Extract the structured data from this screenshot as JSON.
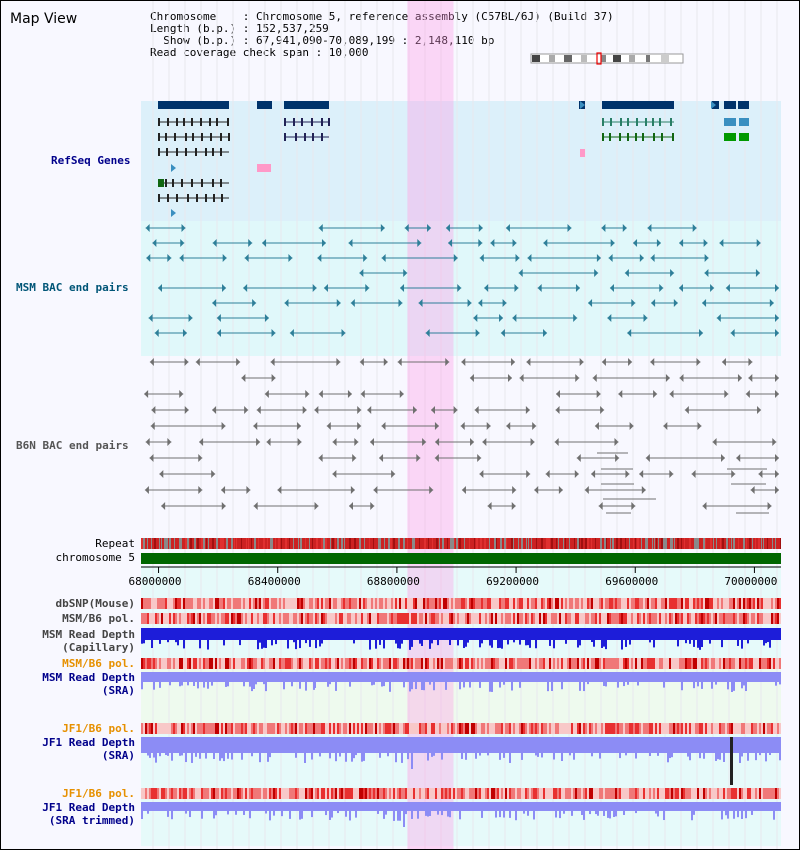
{
  "page": {
    "title": "Map View"
  },
  "header": {
    "chromosome_label": "Chromosome    : Chromosome 5, reference assembly (C57BL/6J) (Build 37)",
    "length_label": "Length (b.p.) : 152,537,259",
    "show_label": "  Show (b.p.) : 67,941,090-70,089,199 : 2,148,110 bp",
    "coverage_label": "Read coverage check span : 10,000"
  },
  "tracks": {
    "refseq": "RefSeq Genes",
    "msm_bac": "MSM BAC end pairs",
    "b6n_bac": "B6N BAC end pairs",
    "repeat": "Repeat",
    "chromosome": "chromosome 5",
    "dbsnp": "dbSNP(Mouse)",
    "msm_b6_pol": "MSM/B6 pol.",
    "msm_depth_cap_1": "MSM Read Depth",
    "msm_depth_cap_2": "(Capillary)",
    "msm_b6_pol_sra": "MSM/B6 pol.",
    "msm_depth_sra_1": "MSM Read Depth",
    "msm_depth_sra_2": "(SRA)",
    "jf1_b6_pol": "JF1/B6 pol.",
    "jf1_depth_1": "JF1 Read Depth",
    "jf1_depth_2": "(SRA)",
    "jf1_b6_pol_2": "JF1/B6 pol.",
    "jf1_trim_1": "JF1 Read Depth",
    "jf1_trim_2": "(SRA trimmed)"
  },
  "axis": {
    "ticks": [
      "68000000",
      "68400000",
      "68800000",
      "69200000",
      "69600000",
      "70000000"
    ],
    "tick_values": [
      68000000,
      68400000,
      68800000,
      69200000,
      69600000,
      70000000
    ],
    "range": [
      67941090,
      70089199
    ]
  },
  "highlight": {
    "start": 68835000,
    "end": 68990000
  },
  "colors": {
    "refseq_bg": "#dcf0fa",
    "msm_bg": "#e0f8fa",
    "b6n_bg": "#f8f8ff",
    "highlight": "#ff99e6",
    "gene_dark": "#00336b",
    "msm_pair": "#2e7f99",
    "b6n_pair": "#707070",
    "chrom": "#006600",
    "depth_blue": "#1d1dd9",
    "depth_light": "#8c8cf5",
    "label_blue": "#00008b",
    "label_orange": "#e69000"
  }
}
